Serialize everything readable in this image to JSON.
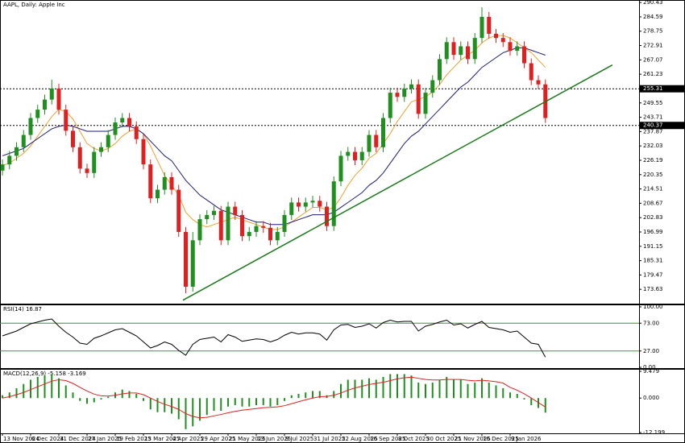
{
  "chart_data": [
    {
      "type": "candlestick",
      "title": "AAPL, Daily: Apple Inc",
      "categories": [
        "13 Nov 2024",
        null,
        null,
        null,
        "6 Dec 2024",
        null,
        null,
        null,
        "31 Dec 2024",
        null,
        null,
        null,
        "27 Jan 2025",
        null,
        null,
        null,
        "19 Feb 2025",
        null,
        null,
        null,
        "13 Mar 2025",
        null,
        null,
        null,
        "4 Apr 2025",
        null,
        null,
        null,
        "29 Apr 2025",
        null,
        null,
        null,
        "21 May 2025",
        null,
        null,
        null,
        "13 Jun 2025",
        null,
        null,
        null,
        "9 Jul 2025",
        null,
        null,
        null,
        "31 Jul 2025",
        null,
        null,
        null,
        "22 Aug 2025",
        null,
        null,
        null,
        "16 Sep 2025",
        null,
        null,
        null,
        "8 Oct 2025",
        null,
        null,
        null,
        "30 Oct 2025",
        null,
        null,
        null,
        "21 Nov 2025",
        null,
        null,
        null,
        "16 Dec 2025",
        null,
        null,
        null,
        "9 Jan 2026",
        null,
        null,
        null,
        null,
        null
      ],
      "open": [
        222,
        224.5,
        228,
        231.5,
        236.5,
        243.4,
        246.8,
        250.9,
        255.4,
        246.8,
        238.2,
        231.5,
        222.8,
        221,
        229.6,
        231.5,
        236.5,
        241.6,
        243.4,
        240,
        234.8,
        224.5,
        210.7,
        214.2,
        219.3,
        214.2,
        197,
        174.7,
        193.6,
        202.2,
        203.9,
        205.6,
        193.6,
        207.3,
        203.9,
        195.3,
        197,
        199.4,
        198.7,
        193.6,
        197,
        203.9,
        209,
        207.3,
        209,
        209.7,
        207.3,
        199.4,
        217.6,
        228,
        229.6,
        226.2,
        229.6,
        236.5,
        231.5,
        243.4,
        253.7,
        252,
        255.4,
        257.1,
        245.1,
        253.7,
        258.8,
        267.4,
        274.3,
        269.1,
        272.6,
        267.4,
        276,
        284.6,
        277.7,
        276,
        274.3,
        270.8,
        272.6,
        265.7,
        258.8,
        257.1
      ],
      "high": [
        226.5,
        230,
        233.5,
        238.5,
        245.4,
        248.8,
        252.9,
        259,
        257.4,
        248.8,
        240.2,
        233.5,
        224.8,
        231.6,
        233.5,
        238.5,
        243.6,
        245.4,
        245.4,
        242,
        236.8,
        226.5,
        216.2,
        221.3,
        221.3,
        216.2,
        199,
        197,
        204.2,
        205.9,
        207.6,
        207.6,
        209.3,
        209.3,
        205.9,
        199,
        201.4,
        201.4,
        200.7,
        199,
        205.9,
        211,
        211,
        211,
        211.7,
        211.7,
        209.3,
        219.6,
        230,
        231.6,
        231.6,
        231.6,
        238.5,
        238.5,
        245.4,
        255.7,
        255.7,
        257.4,
        259.1,
        259.1,
        255.7,
        260.8,
        269.4,
        276.3,
        276.3,
        274.6,
        274.6,
        278,
        288.5,
        286.6,
        279.7,
        278,
        276.3,
        274.6,
        274.6,
        267.7,
        260.8,
        259.1
      ],
      "low": [
        220,
        222.5,
        226,
        229.5,
        234.5,
        241.4,
        244.8,
        248.9,
        244.8,
        236.2,
        229.5,
        220.8,
        219,
        219,
        227.6,
        229.5,
        234.5,
        239.6,
        238,
        232.8,
        222.5,
        208.7,
        208.7,
        212.2,
        212.2,
        195,
        172,
        172.7,
        191.6,
        200.2,
        201.9,
        191.6,
        191.6,
        201.9,
        193.3,
        193.3,
        195,
        196.7,
        191.6,
        191.6,
        195,
        201.9,
        205.3,
        205.3,
        207,
        205.3,
        197.4,
        197.4,
        215.6,
        226,
        224.2,
        224.2,
        227.6,
        229.5,
        229.5,
        241.4,
        250,
        250,
        253.4,
        243.1,
        243.1,
        251.7,
        256.8,
        265.4,
        267.1,
        267.1,
        265.4,
        265.4,
        274,
        275.7,
        274,
        272.3,
        268.8,
        268.8,
        263.7,
        256.8,
        255.1,
        241.4
      ],
      "close": [
        224.5,
        228,
        231.5,
        236.5,
        243.4,
        246.8,
        250.9,
        255.4,
        246.8,
        238.2,
        231.5,
        222.8,
        221,
        229.6,
        231.5,
        236.5,
        241.6,
        243.4,
        240,
        234.8,
        224.5,
        210.7,
        214.2,
        219.3,
        214.2,
        197,
        174.7,
        193.6,
        202.2,
        203.9,
        205.6,
        193.6,
        207.3,
        203.9,
        195.3,
        197,
        199.4,
        198.7,
        193.6,
        197,
        203.9,
        209,
        207.3,
        209,
        209.7,
        207.3,
        199.4,
        217.6,
        228,
        229.6,
        226.2,
        229.6,
        236.5,
        231.5,
        243.4,
        253.7,
        252,
        255.4,
        257.1,
        245.1,
        253.7,
        258.8,
        267.4,
        274.3,
        269.1,
        272.6,
        267.4,
        276,
        284.6,
        277.7,
        276,
        274.3,
        270.8,
        272.6,
        265.7,
        258.8,
        257.1,
        243.4
      ],
      "up_color": "#1f8f1f",
      "down_color": "#e02020",
      "lines": [
        {
          "color": "#f0a030",
          "values": [
            224,
            225,
            227,
            229,
            232,
            236,
            240,
            244,
            247,
            246,
            243,
            238,
            233,
            231,
            230,
            231,
            233,
            236,
            238,
            239,
            237,
            232,
            226,
            220,
            216,
            212,
            205,
            202,
            200,
            199,
            200,
            201,
            202,
            203,
            202,
            201,
            200,
            199,
            198,
            198,
            199,
            201,
            203,
            205,
            207,
            207,
            206,
            207,
            211,
            216,
            220,
            223,
            227,
            229,
            233,
            237,
            242,
            246,
            250,
            251,
            252,
            254,
            257,
            261,
            264,
            267,
            269,
            271,
            274,
            276,
            277,
            277,
            276,
            274,
            272,
            270,
            267,
            264
          ]
        },
        {
          "color": "#1c1c78",
          "values": [
            228,
            229,
            230,
            231,
            233,
            235,
            237,
            239,
            240,
            240.5,
            240,
            239,
            238,
            238,
            238,
            238,
            239,
            240,
            240,
            239,
            237,
            234,
            231,
            228,
            226,
            222,
            218,
            215,
            212,
            210,
            208,
            206,
            205,
            204,
            203,
            202,
            201,
            201,
            200,
            200,
            200,
            201,
            202,
            203,
            204,
            204,
            204,
            205,
            207,
            209,
            211,
            213,
            216,
            218,
            221,
            225,
            229,
            233,
            236,
            238,
            241,
            244,
            247,
            250,
            253,
            256,
            258,
            261,
            264,
            266,
            268,
            270,
            271,
            272,
            272,
            271,
            270,
            269
          ]
        }
      ],
      "trendline": {
        "color": "#1a7a1a",
        "x": [
          25.6,
          86.5
        ],
        "values": [
          169.2,
          265
        ]
      },
      "levels": [
        255.31,
        240.37
      ],
      "ylim": [
        167.79,
        291.46
      ],
      "yticks": [
        290.43,
        284.59,
        278.75,
        272.91,
        267.07,
        261.23,
        249.55,
        243.71,
        237.87,
        232.03,
        226.19,
        220.35,
        214.51,
        208.67,
        202.83,
        196.99,
        191.15,
        185.31,
        179.47,
        173.63
      ]
    },
    {
      "type": "line",
      "title": "RSI(14) 16.87",
      "color": "#000000",
      "values": [
        52,
        56,
        60,
        66,
        72,
        75,
        78,
        80,
        68,
        58,
        50,
        40,
        38,
        48,
        52,
        57,
        62,
        64,
        58,
        52,
        42,
        32,
        36,
        42,
        38,
        28,
        20,
        38,
        46,
        48,
        50,
        42,
        54,
        50,
        43,
        45,
        47,
        46,
        42,
        46,
        53,
        58,
        55,
        57,
        57,
        55,
        45,
        62,
        70,
        71,
        66,
        68,
        72,
        65,
        74,
        78,
        75,
        76,
        76,
        60,
        68,
        71,
        75,
        78,
        70,
        72,
        65,
        71,
        76,
        66,
        64,
        62,
        58,
        60,
        50,
        40,
        38,
        16.87
      ],
      "levels": [
        73,
        27
      ],
      "level_color": "#2e9e2e",
      "ylim": [
        0,
        100
      ],
      "yticks": [
        {
          "value": 100,
          "label": "100.00"
        },
        {
          "value": 73,
          "label": "73.00"
        },
        {
          "value": 27,
          "label": "27.00"
        },
        {
          "value": 0,
          "label": "0.00"
        }
      ]
    },
    {
      "type": "macd",
      "title": "MACD(12,26,9) -5.158 -3.169",
      "series": [
        {
          "color": "#1f8f1f",
          "values": [
            1,
            2,
            3.5,
            5,
            6.5,
            7.5,
            8,
            8.5,
            7,
            4.5,
            2,
            -1,
            -2,
            -1.5,
            -0.5,
            0.5,
            2,
            3,
            2.5,
            1.5,
            -1,
            -4,
            -5,
            -5,
            -5.5,
            -7.5,
            -11,
            -10,
            -8,
            -6,
            -4.5,
            -4.5,
            -3,
            -2.5,
            -3,
            -3,
            -2.5,
            -2.5,
            -3,
            -2.5,
            -1,
            1,
            1.5,
            2,
            2.5,
            2.5,
            1,
            2.5,
            5,
            6.5,
            6.5,
            6.5,
            7,
            6.5,
            7.5,
            8.5,
            8.5,
            8.5,
            8,
            5.5,
            5,
            5.5,
            6.5,
            7.5,
            6.5,
            6.5,
            5,
            5.5,
            7,
            5.5,
            4.5,
            3.5,
            2,
            1.5,
            -0.5,
            -2.5,
            -3.5,
            -5.158
          ]
        },
        {
          "color": "#e02020",
          "values": [
            0,
            0.5,
            1.2,
            2,
            3,
            4,
            5,
            6,
            6.5,
            6.2,
            5.2,
            3.8,
            2.5,
            1.4,
            0.8,
            0.7,
            1,
            1.5,
            1.8,
            1.8,
            1.2,
            0,
            -1.2,
            -2.2,
            -3,
            -4,
            -5.5,
            -6.5,
            -7,
            -6.8,
            -6.3,
            -5.8,
            -5.2,
            -4.7,
            -4.3,
            -4,
            -3.7,
            -3.4,
            -3.3,
            -3.1,
            -2.7,
            -2,
            -1.3,
            -0.6,
            0,
            0.5,
            0.6,
            1,
            1.8,
            2.8,
            3.6,
            4.2,
            4.8,
            5.2,
            5.6,
            6.2,
            6.8,
            7.2,
            7.4,
            7,
            6.6,
            6.4,
            6.4,
            6.6,
            6.6,
            6.6,
            6.3,
            6.1,
            6.3,
            6.1,
            5.8,
            5.3,
            3.8,
            2.8,
            1.5,
            0,
            -1.6,
            -3.169
          ]
        }
      ],
      "ylim": [
        -12.199,
        9.479
      ],
      "yticks": [
        9.479,
        {
          "value": 0,
          "label": "0.000"
        },
        -12.199
      ]
    }
  ]
}
